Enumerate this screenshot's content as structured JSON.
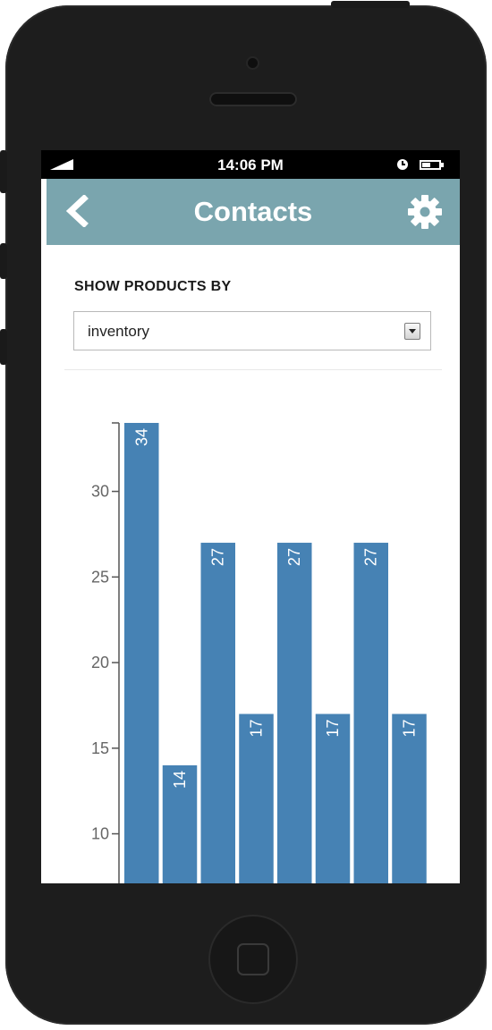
{
  "statusbar": {
    "time": "14:06 PM",
    "icons": [
      "signal-icon",
      "alarm-clock-icon",
      "battery-icon"
    ]
  },
  "header": {
    "title": "Contacts",
    "back_icon": "chevron-left-icon",
    "settings_icon": "gear-icon",
    "background_color": "#7aa5ae"
  },
  "filter": {
    "label": "SHOW PRODUCTS BY",
    "selected": "inventory"
  },
  "chart_data": {
    "type": "bar",
    "values": [
      34,
      14,
      27,
      17,
      27,
      17,
      27,
      17
    ],
    "data_labels": [
      "34",
      "14",
      "27",
      "17",
      "27",
      "17",
      "27",
      "17"
    ],
    "y_ticks": [
      10,
      15,
      20,
      25,
      30
    ],
    "y_tick_labels": [
      "10",
      "15",
      "20",
      "25",
      "30"
    ],
    "ylim": [
      7,
      34
    ],
    "bar_color": "#4682b4",
    "grid": false
  }
}
